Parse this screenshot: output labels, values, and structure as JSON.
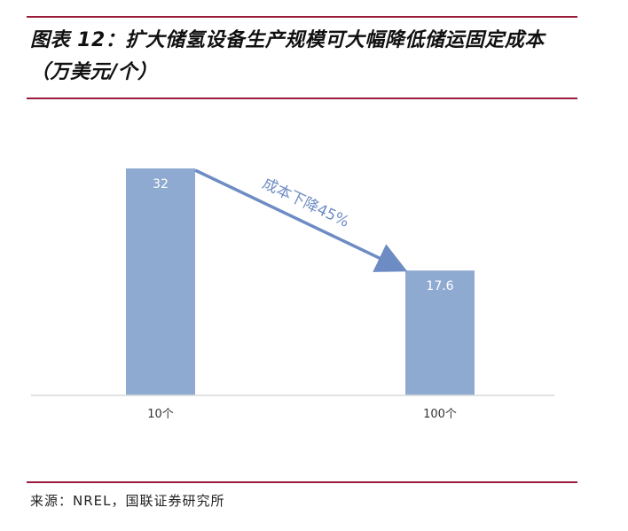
{
  "header": {
    "title": "图表 12：扩大储氢设备生产规模可大幅降低储运固定成本（万美元/个）"
  },
  "footer": {
    "source": "来源：NREL，国联证券研究所"
  },
  "chart_data": {
    "type": "bar",
    "categories": [
      "10个",
      "100个"
    ],
    "values": [
      32,
      17.6
    ],
    "value_labels": [
      "32",
      "17.6"
    ],
    "bar_color": "#8faad1",
    "annotation": {
      "text": "成本下降45%",
      "color": "#6e8cc4",
      "from_category": "10个",
      "to_category": "100个"
    },
    "title": "",
    "xlabel": "",
    "ylabel": "",
    "ylim": [
      0,
      32
    ],
    "grid": false,
    "legend": "none"
  }
}
